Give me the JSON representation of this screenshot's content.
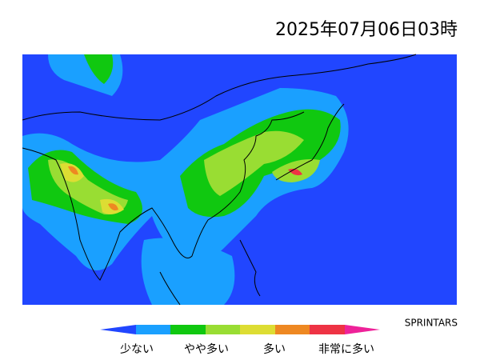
{
  "header": {
    "title": "2025年07月06日03時"
  },
  "credit": "SPRINTARS",
  "legend": {
    "labels": [
      "少ない",
      "やや多い",
      "多い",
      "非常に多い"
    ]
  }
}
